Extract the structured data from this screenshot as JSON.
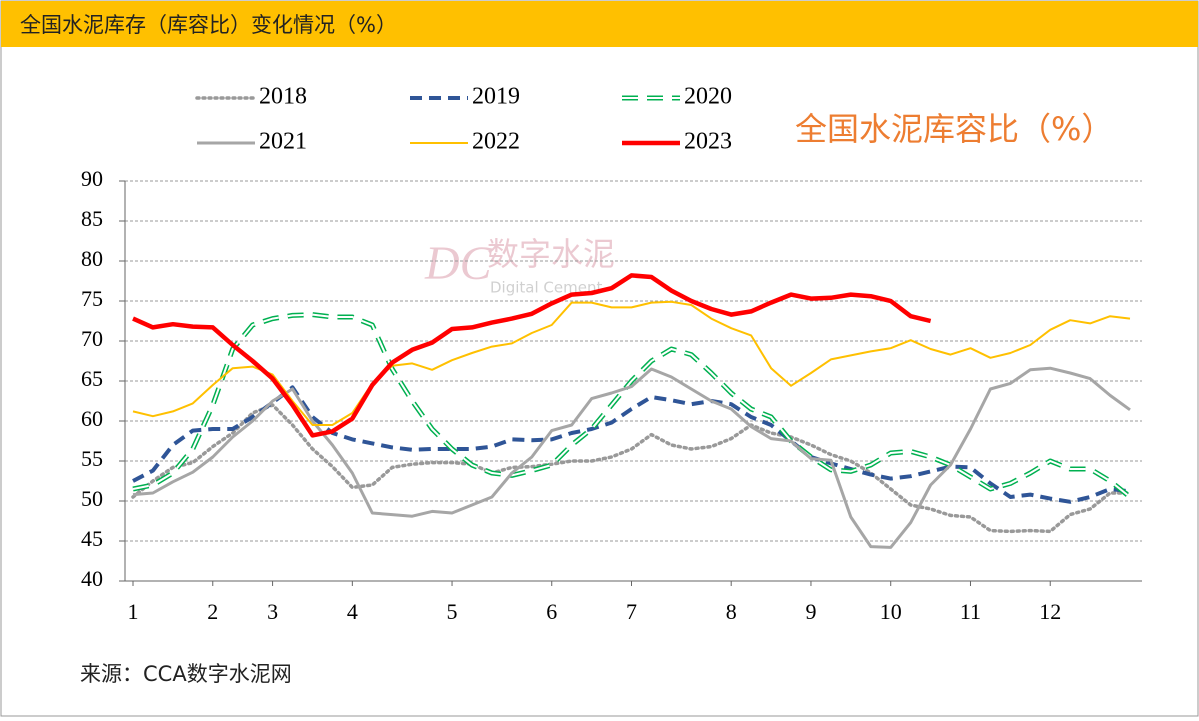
{
  "chart_data": {
    "type": "line",
    "title": "全国水泥库存（库容比）变化情况（%）",
    "annotation": "全国水泥库容比（%）",
    "watermark": {
      "logo": "DC",
      "name": "数字水泥",
      "name_en": "Digital Cement"
    },
    "source": "来源：CCA数字水泥网",
    "categories": [
      "1",
      null,
      null,
      null,
      "2",
      null,
      null,
      "3",
      null,
      null,
      null,
      "4",
      null,
      null,
      null,
      null,
      "5",
      null,
      null,
      null,
      null,
      "6",
      null,
      null,
      null,
      "7",
      null,
      null,
      null,
      null,
      "8",
      null,
      null,
      null,
      "9",
      null,
      null,
      null,
      "10",
      null,
      null,
      null,
      "11",
      null,
      null,
      null,
      "12",
      null,
      null,
      null,
      null
    ],
    "ylim": [
      40,
      90
    ],
    "yticks": [
      40,
      45,
      50,
      55,
      60,
      65,
      70,
      75,
      80,
      85,
      90
    ],
    "grid": true,
    "series": [
      {
        "name": "2018",
        "color": "#999999",
        "style": "dotted",
        "values": [
          50.5,
          52.5,
          54.2,
          54.8,
          56.8,
          58.5,
          61,
          62,
          59.5,
          56.5,
          54.3,
          51.7,
          52,
          54.2,
          54.6,
          54.8,
          54.8,
          54.6,
          53.5,
          54.2,
          54.3,
          54.6,
          55,
          55,
          55.5,
          56.5,
          58.3,
          57,
          56.5,
          56.8,
          57.8,
          59.5,
          58.5,
          58,
          57,
          55.8,
          55,
          53.5,
          51.5,
          49.5,
          49,
          48.2,
          48,
          46.3,
          46.2,
          46.3,
          46.2,
          48.3,
          49,
          51,
          51
        ]
      },
      {
        "name": "2019",
        "color": "#2F5597",
        "style": "dashed",
        "values": [
          52.5,
          53.8,
          57,
          58.8,
          59,
          59,
          60.5,
          62.3,
          64.2,
          60.5,
          58.5,
          57.7,
          57.2,
          56.7,
          56.4,
          56.5,
          56.5,
          56.5,
          56.8,
          57.7,
          57.6,
          57.7,
          58.5,
          59,
          59.8,
          61.5,
          63,
          62.6,
          62.1,
          62.5,
          62.1,
          60.5,
          59.5,
          57.5,
          55.5,
          54.7,
          54,
          53.3,
          52.8,
          53.1,
          53.7,
          54.3,
          54.2,
          52.2,
          50.5,
          50.8,
          50.3,
          49.9,
          50.5,
          51.5,
          51.2
        ]
      },
      {
        "name": "2020",
        "color": "#00B050",
        "style": "hollow-dashed",
        "values": [
          51.5,
          52,
          53.5,
          56.5,
          62,
          69,
          72,
          72.8,
          73.2,
          73.3,
          73,
          73,
          72,
          66.5,
          62.5,
          59,
          56.5,
          54.5,
          53.5,
          53.2,
          53.8,
          54.5,
          57,
          59,
          62,
          65,
          67.5,
          69,
          68.3,
          66,
          63.5,
          61.5,
          60.5,
          57.5,
          55.5,
          53.9,
          53.7,
          54.5,
          56,
          56.2,
          55.5,
          54.5,
          53,
          51.5,
          52.2,
          53.5,
          55,
          54,
          54,
          52.5,
          50.5
        ]
      },
      {
        "name": "2021",
        "color": "#A6A6A6",
        "style": "solid",
        "values": [
          50.8,
          51,
          52.4,
          53.6,
          55.5,
          58,
          60,
          62.5,
          64,
          60,
          57,
          53.5,
          48.5,
          48.3,
          48.1,
          48.7,
          48.5,
          49.5,
          50.5,
          53.5,
          55.5,
          58.8,
          59.5,
          62.8,
          63.5,
          64.3,
          66.5,
          65.5,
          64,
          62.5,
          61.5,
          59.3,
          57.8,
          57.5,
          55.3,
          55.1,
          48,
          44.3,
          44.2,
          47.3,
          52,
          54.5,
          59,
          64,
          64.7,
          66.4,
          66.6,
          66,
          65.3,
          63.2,
          61.4
        ]
      },
      {
        "name": "2022",
        "color": "#FFC000",
        "style": "solid",
        "values": [
          61.2,
          60.6,
          61.2,
          62.2,
          64.5,
          66.6,
          66.8,
          65.8,
          62.5,
          59.5,
          59.5,
          61,
          64.7,
          66.9,
          67.2,
          66.4,
          67.6,
          68.5,
          69.3,
          69.7,
          71,
          72,
          74.8,
          74.8,
          74.2,
          74.2,
          74.8,
          74.9,
          74.5,
          72.8,
          71.6,
          70.7,
          66.6,
          64.4,
          66,
          67.7,
          68.2,
          68.7,
          69.1,
          70.1,
          69,
          68.3,
          69.1,
          67.9,
          68.5,
          69.5,
          71.4,
          72.6,
          72.2,
          73.1,
          72.8
        ]
      },
      {
        "name": "2023",
        "color": "#FF0000",
        "style": "solid",
        "values": [
          72.8,
          71.7,
          72.1,
          71.8,
          71.7,
          69.5,
          67.5,
          65.3,
          62,
          58.2,
          58.7,
          60.3,
          64.5,
          67.3,
          68.9,
          69.8,
          71.5,
          71.7,
          72.3,
          72.8,
          73.4,
          74.7,
          75.8,
          76,
          76.6,
          78.2,
          78,
          76.3,
          75,
          74,
          73.3,
          73.7,
          74.8,
          75.8,
          75.3,
          75.4,
          75.8,
          75.6,
          75,
          73.1,
          72.5,
          null,
          null,
          null,
          null,
          null,
          null,
          null,
          null,
          null,
          null
        ]
      }
    ]
  }
}
